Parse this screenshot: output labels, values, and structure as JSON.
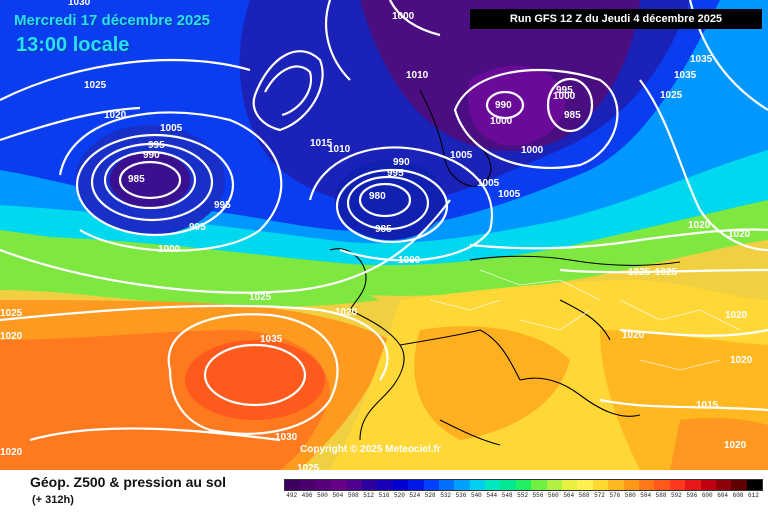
{
  "header": {
    "date": "Mercredi 17 décembre 2025",
    "time": "13:00 locale",
    "run": "Run GFS 12 Z du Jeudi 4 décembre 2025"
  },
  "copyright": "Copyright © 2025 Meteociel.fr",
  "footer": {
    "title": "Géop. Z500 & pression au sol",
    "forecast_hour": "(+ 312h)"
  },
  "legend": {
    "values": [
      "492",
      "496",
      "500",
      "504",
      "508",
      "512",
      "516",
      "520",
      "524",
      "528",
      "532",
      "536",
      "540",
      "544",
      "548",
      "552",
      "556",
      "560",
      "564",
      "568",
      "572",
      "576",
      "580",
      "584",
      "588",
      "592",
      "596",
      "600",
      "604",
      "608",
      "612"
    ],
    "colors": [
      "#3d0060",
      "#4a006e",
      "#58007c",
      "#660088",
      "#500090",
      "#2a00a0",
      "#1800b8",
      "#0000d0",
      "#0018e8",
      "#0040ff",
      "#0070ff",
      "#00a0ff",
      "#00d0f0",
      "#00e8c0",
      "#00e890",
      "#20f060",
      "#70f040",
      "#b0f040",
      "#e8f040",
      "#fff050",
      "#ffd830",
      "#ffb820",
      "#ff9818",
      "#ff7818",
      "#ff5818",
      "#ff3820",
      "#e81818",
      "#c00010",
      "#900008",
      "#600004",
      "#000000"
    ]
  },
  "isobar_labels": [
    "1030",
    "1025",
    "1020",
    "1005",
    "995",
    "990",
    "985",
    "995",
    "995",
    "1000",
    "1025",
    "1035",
    "1030",
    "1025",
    "1020",
    "1020",
    "1025",
    "1020",
    "1015",
    "1010",
    "1005",
    "1000",
    "995",
    "990",
    "980",
    "985",
    "1000",
    "1005",
    "1005",
    "1000",
    "1010",
    "1000",
    "990",
    "995",
    "985",
    "1000",
    "1020",
    "1035",
    "1035",
    "1025",
    "1025",
    "1025",
    "1020",
    "1020",
    "1020",
    "1020",
    "1015",
    "1020"
  ],
  "map": {
    "colors": {
      "ocean_blue": "#0030e0",
      "low_purple": "#4a0e80",
      "warm_orange": "#ff8a1e",
      "coast": "#000000",
      "isobar": "#ffffff"
    }
  }
}
